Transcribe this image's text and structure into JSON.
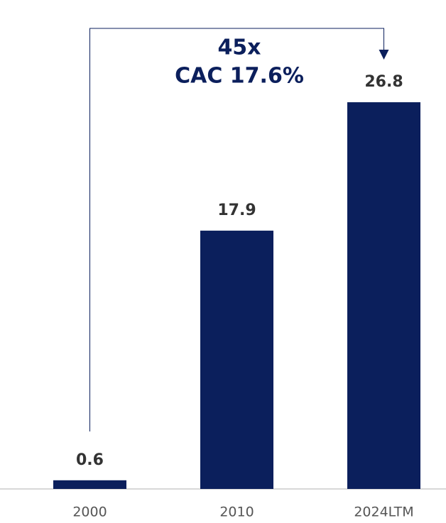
{
  "chart_data": {
    "type": "bar",
    "annotations": [
      "45x",
      "CAC 17.6%"
    ],
    "categories": [
      "2000",
      "2010",
      "2024LTM"
    ],
    "values": [
      0.6,
      17.9,
      26.8
    ],
    "color": "#0b1f5c",
    "ylim": [
      0,
      30
    ]
  }
}
